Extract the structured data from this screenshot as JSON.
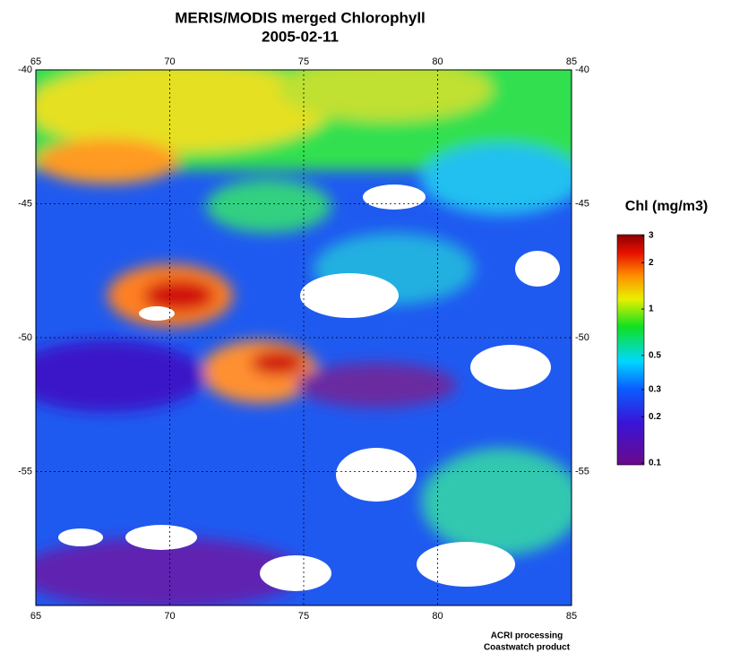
{
  "title": "MERIS/MODIS merged Chlorophyll",
  "subtitle": "2005-02-11",
  "map": {
    "xlim": [
      65,
      85
    ],
    "ylim": [
      -40,
      -60
    ],
    "xticks": [
      65,
      70,
      75,
      80,
      85
    ],
    "yticks": [
      -40,
      -45,
      -50,
      -55
    ],
    "grid": true
  },
  "colorbar": {
    "title": "Chl (mg/m3)",
    "range": [
      0.1,
      3
    ],
    "log": true,
    "ticks": [
      3,
      2,
      1,
      0.5,
      0.3,
      0.2,
      0.1
    ]
  },
  "credits": [
    "ACRI processing",
    "Coastwatch product"
  ]
}
